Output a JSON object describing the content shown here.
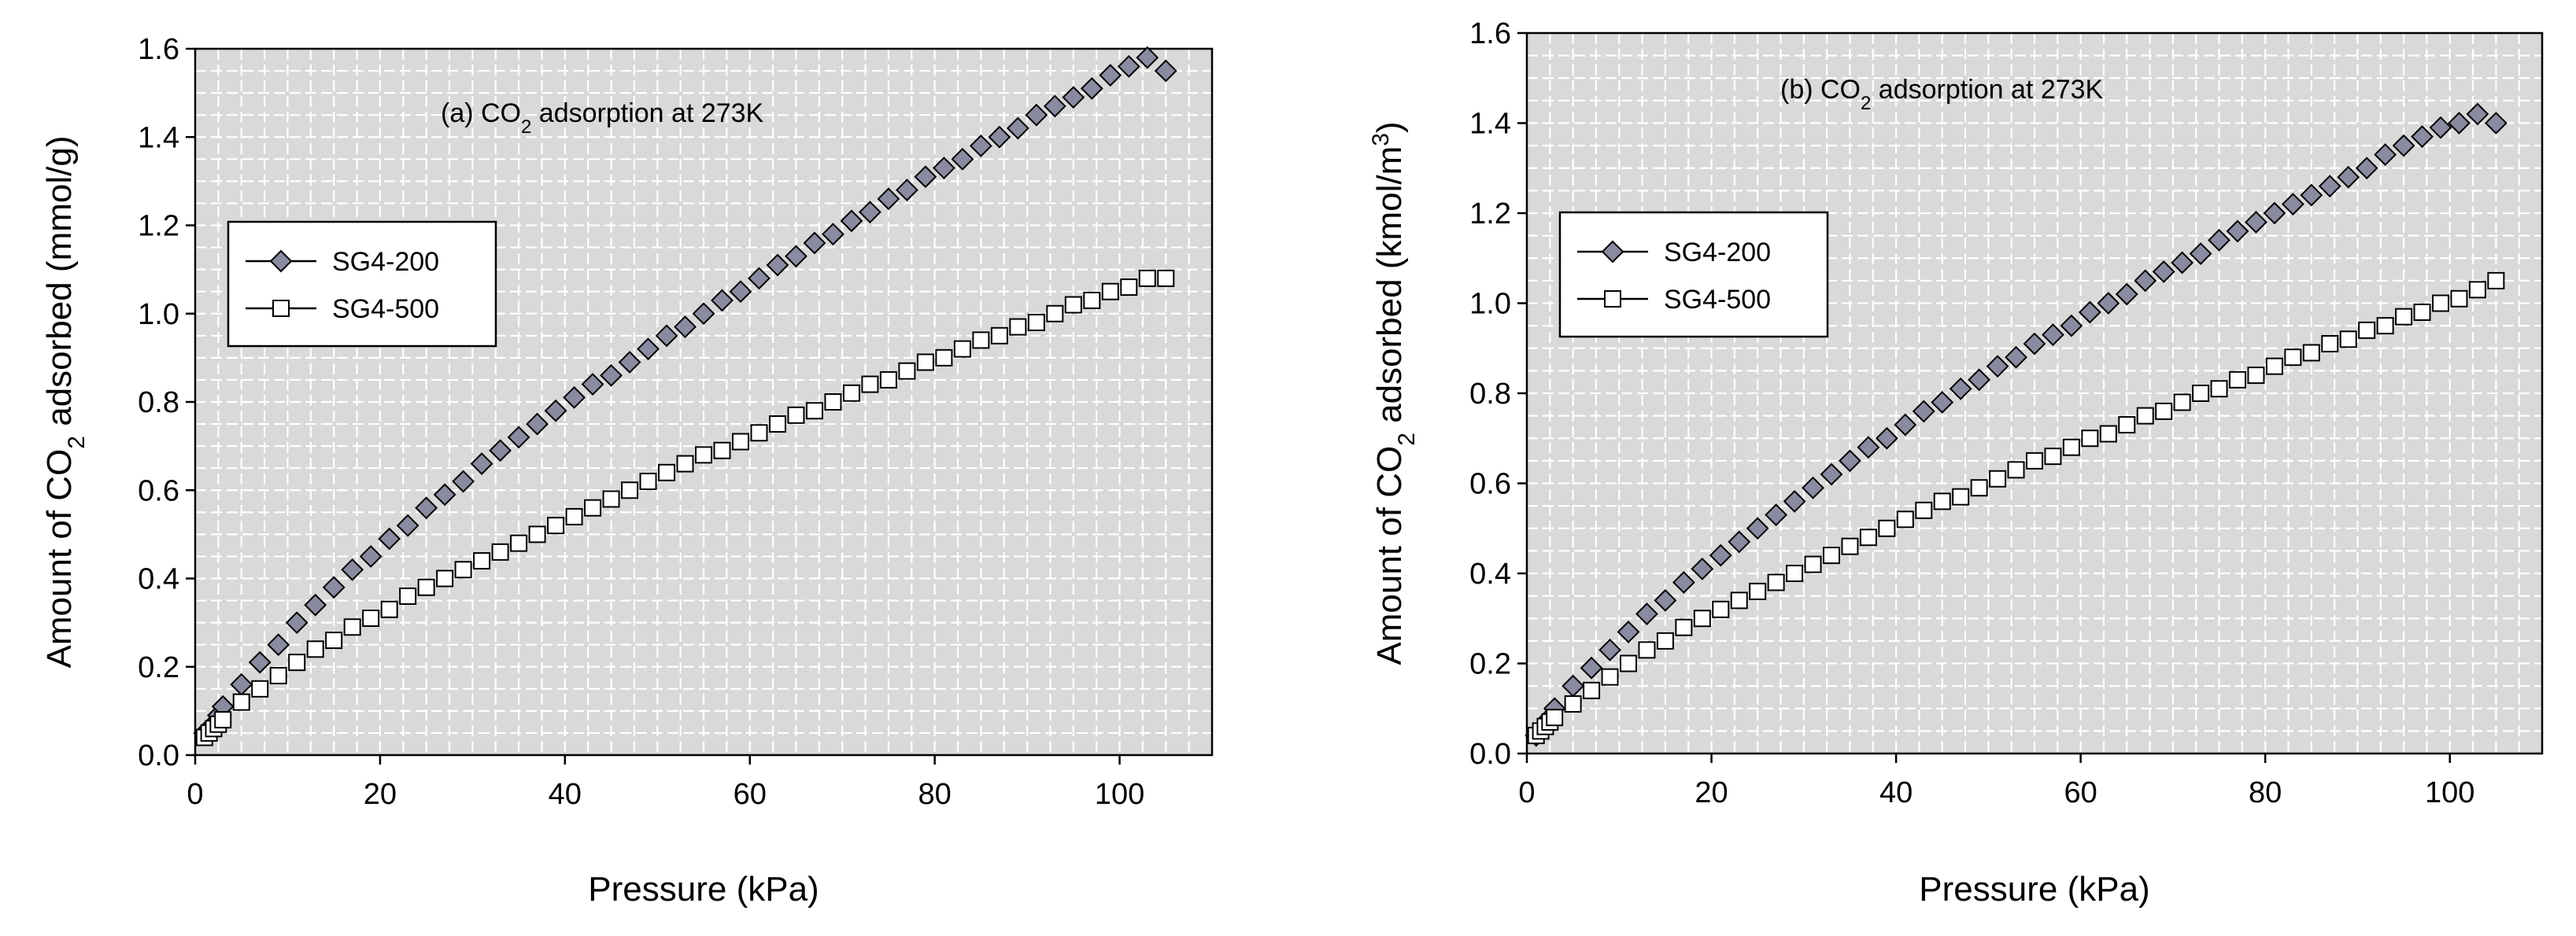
{
  "chart_data": [
    {
      "type": "scatter",
      "title": "(a) CO2 adsorption at 273K",
      "title_parts": {
        "pre": "(a) CO",
        "sub": "2",
        "post": " adsorption at 273K"
      },
      "xlabel": "Pressure (kPa)",
      "ylabel": "Amount of CO2 adsorbed (mmol/g)",
      "ylabel_parts": {
        "pre": "Amount of CO",
        "sub": "2",
        "mid": " adsorbed (mmol/g)",
        "sup": "",
        "post": ""
      },
      "xlim": [
        0,
        110
      ],
      "ylim": [
        0,
        1.6
      ],
      "xticks": [
        0,
        20,
        40,
        60,
        80,
        100
      ],
      "yticks": [
        0.0,
        0.2,
        0.4,
        0.6,
        0.8,
        1.0,
        1.2,
        1.4,
        1.6
      ],
      "xtick_labels": [
        "0",
        "20",
        "40",
        "60",
        "80",
        "100"
      ],
      "ytick_labels": [
        "0.0",
        "0.2",
        "0.4",
        "0.6",
        "0.8",
        "1.0",
        "1.2",
        "1.4",
        "1.6"
      ],
      "grid": true,
      "legend_position": "upper-left",
      "series": [
        {
          "name": "SG4-200",
          "marker": "diamond",
          "color": "#8a8aa0",
          "x": [
            1.0,
            1.5,
            2.0,
            2.5,
            3.0,
            5.0,
            7.0,
            9.0,
            11.0,
            13.0,
            15.0,
            17.0,
            19.0,
            21.0,
            23.0,
            25.0,
            27.0,
            29.0,
            31.0,
            33.0,
            35.0,
            37.0,
            39.0,
            41.0,
            43.0,
            45.0,
            47.0,
            49.0,
            51.0,
            53.0,
            55.0,
            57.0,
            59.0,
            61.0,
            63.0,
            65.0,
            67.0,
            69.0,
            71.0,
            73.0,
            75.0,
            77.0,
            79.0,
            81.0,
            83.0,
            85.0,
            87.0,
            89.0,
            91.0,
            93.0,
            95.0,
            97.0,
            99.0,
            101.0,
            103.0,
            105.0
          ],
          "y": [
            0.05,
            0.06,
            0.07,
            0.09,
            0.11,
            0.16,
            0.21,
            0.25,
            0.3,
            0.34,
            0.38,
            0.42,
            0.45,
            0.49,
            0.52,
            0.56,
            0.59,
            0.62,
            0.66,
            0.69,
            0.72,
            0.75,
            0.78,
            0.81,
            0.84,
            0.86,
            0.89,
            0.92,
            0.95,
            0.97,
            1.0,
            1.03,
            1.05,
            1.08,
            1.11,
            1.13,
            1.16,
            1.18,
            1.21,
            1.23,
            1.26,
            1.28,
            1.31,
            1.33,
            1.35,
            1.38,
            1.4,
            1.42,
            1.45,
            1.47,
            1.49,
            1.51,
            1.54,
            1.56,
            1.58,
            1.55
          ]
        },
        {
          "name": "SG4-500",
          "marker": "square-open",
          "color": "#ffffff",
          "x": [
            1.0,
            1.5,
            2.0,
            2.5,
            3.0,
            5.0,
            7.0,
            9.0,
            11.0,
            13.0,
            15.0,
            17.0,
            19.0,
            21.0,
            23.0,
            25.0,
            27.0,
            29.0,
            31.0,
            33.0,
            35.0,
            37.0,
            39.0,
            41.0,
            43.0,
            45.0,
            47.0,
            49.0,
            51.0,
            53.0,
            55.0,
            57.0,
            59.0,
            61.0,
            63.0,
            65.0,
            67.0,
            69.0,
            71.0,
            73.0,
            75.0,
            77.0,
            79.0,
            81.0,
            83.0,
            85.0,
            87.0,
            89.0,
            91.0,
            93.0,
            95.0,
            97.0,
            99.0,
            101.0,
            103.0,
            105.0
          ],
          "y": [
            0.04,
            0.05,
            0.06,
            0.07,
            0.08,
            0.12,
            0.15,
            0.18,
            0.21,
            0.24,
            0.26,
            0.29,
            0.31,
            0.33,
            0.36,
            0.38,
            0.4,
            0.42,
            0.44,
            0.46,
            0.48,
            0.5,
            0.52,
            0.54,
            0.56,
            0.58,
            0.6,
            0.62,
            0.64,
            0.66,
            0.68,
            0.69,
            0.71,
            0.73,
            0.75,
            0.77,
            0.78,
            0.8,
            0.82,
            0.84,
            0.85,
            0.87,
            0.89,
            0.9,
            0.92,
            0.94,
            0.95,
            0.97,
            0.98,
            1.0,
            1.02,
            1.03,
            1.05,
            1.06,
            1.08,
            1.08
          ]
        }
      ]
    },
    {
      "type": "scatter",
      "title": "(b) CO2 adsorption at 273K",
      "title_parts": {
        "pre": "(b) CO",
        "sub": "2",
        "post": " adsorption at 273K"
      },
      "xlabel": "Pressure (kPa)",
      "ylabel": "Amount of CO2 adsorbed (kmol/m3)",
      "ylabel_parts": {
        "pre": "Amount of CO",
        "sub": "2",
        "mid": " adsorbed (kmol/m",
        "sup": "3",
        "post": ")"
      },
      "xlim": [
        0,
        110
      ],
      "ylim": [
        0,
        1.6
      ],
      "xticks": [
        0,
        20,
        40,
        60,
        80,
        100
      ],
      "yticks": [
        0.0,
        0.2,
        0.4,
        0.6,
        0.8,
        1.0,
        1.2,
        1.4,
        1.6
      ],
      "xtick_labels": [
        "0",
        "20",
        "40",
        "60",
        "80",
        "100"
      ],
      "ytick_labels": [
        "0.0",
        "0.2",
        "0.4",
        "0.6",
        "0.8",
        "1.0",
        "1.2",
        "1.4",
        "1.6"
      ],
      "grid": true,
      "legend_position": "upper-left",
      "series": [
        {
          "name": "SG4-200",
          "marker": "diamond",
          "color": "#8a8aa0",
          "x": [
            1.0,
            1.5,
            2.0,
            2.5,
            3.0,
            5.0,
            7.0,
            9.0,
            11.0,
            13.0,
            15.0,
            17.0,
            19.0,
            21.0,
            23.0,
            25.0,
            27.0,
            29.0,
            31.0,
            33.0,
            35.0,
            37.0,
            39.0,
            41.0,
            43.0,
            45.0,
            47.0,
            49.0,
            51.0,
            53.0,
            55.0,
            57.0,
            59.0,
            61.0,
            63.0,
            65.0,
            67.0,
            69.0,
            71.0,
            73.0,
            75.0,
            77.0,
            79.0,
            81.0,
            83.0,
            85.0,
            87.0,
            89.0,
            91.0,
            93.0,
            95.0,
            97.0,
            99.0,
            101.0,
            103.0,
            105.0
          ],
          "y": [
            0.04,
            0.05,
            0.06,
            0.08,
            0.1,
            0.15,
            0.19,
            0.23,
            0.27,
            0.31,
            0.34,
            0.38,
            0.41,
            0.44,
            0.47,
            0.5,
            0.53,
            0.56,
            0.59,
            0.62,
            0.65,
            0.68,
            0.7,
            0.73,
            0.76,
            0.78,
            0.81,
            0.83,
            0.86,
            0.88,
            0.91,
            0.93,
            0.95,
            0.98,
            1.0,
            1.02,
            1.05,
            1.07,
            1.09,
            1.11,
            1.14,
            1.16,
            1.18,
            1.2,
            1.22,
            1.24,
            1.26,
            1.28,
            1.3,
            1.33,
            1.35,
            1.37,
            1.39,
            1.4,
            1.42,
            1.4
          ]
        },
        {
          "name": "SG4-500",
          "marker": "square-open",
          "color": "#ffffff",
          "x": [
            1.0,
            1.5,
            2.0,
            2.5,
            3.0,
            5.0,
            7.0,
            9.0,
            11.0,
            13.0,
            15.0,
            17.0,
            19.0,
            21.0,
            23.0,
            25.0,
            27.0,
            29.0,
            31.0,
            33.0,
            35.0,
            37.0,
            39.0,
            41.0,
            43.0,
            45.0,
            47.0,
            49.0,
            51.0,
            53.0,
            55.0,
            57.0,
            59.0,
            61.0,
            63.0,
            65.0,
            67.0,
            69.0,
            71.0,
            73.0,
            75.0,
            77.0,
            79.0,
            81.0,
            83.0,
            85.0,
            87.0,
            89.0,
            91.0,
            93.0,
            95.0,
            97.0,
            99.0,
            101.0,
            103.0,
            105.0
          ],
          "y": [
            0.04,
            0.05,
            0.06,
            0.07,
            0.08,
            0.11,
            0.14,
            0.17,
            0.2,
            0.23,
            0.25,
            0.28,
            0.3,
            0.32,
            0.34,
            0.36,
            0.38,
            0.4,
            0.42,
            0.44,
            0.46,
            0.48,
            0.5,
            0.52,
            0.54,
            0.56,
            0.57,
            0.59,
            0.61,
            0.63,
            0.65,
            0.66,
            0.68,
            0.7,
            0.71,
            0.73,
            0.75,
            0.76,
            0.78,
            0.8,
            0.81,
            0.83,
            0.84,
            0.86,
            0.88,
            0.89,
            0.91,
            0.92,
            0.94,
            0.95,
            0.97,
            0.98,
            1.0,
            1.01,
            1.03,
            1.05
          ]
        }
      ]
    }
  ]
}
